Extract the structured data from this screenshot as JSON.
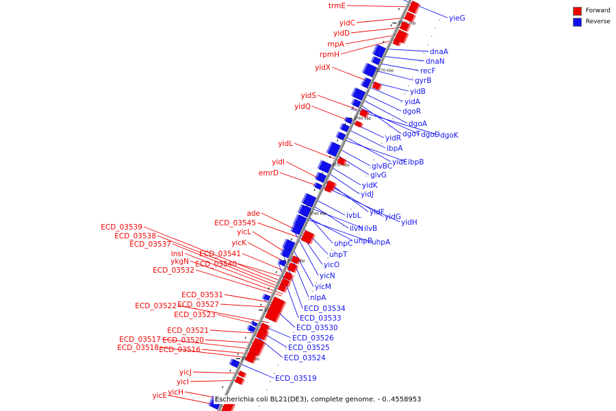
{
  "caption": "Escherichia coli BL21(DE3), complete genome. - 0..4558953",
  "legend": [
    {
      "label": "Forward",
      "color": "#ee0000"
    },
    {
      "label": "Reverse",
      "color": "#1010ee"
    }
  ],
  "colors": {
    "forward": "#ee0000",
    "reverse": "#1010ee",
    "backbone": "#888888"
  },
  "ticks": [
    "3710 kbp",
    "3720 kbp",
    "3730 kbp",
    "3740 kbp",
    "3750 kbp",
    "3760 kbp",
    "3770 kbp",
    "3780 kbp"
  ],
  "forward_genes": [
    "trmE",
    "yidC",
    "yidD",
    "rnpA",
    "rpmH",
    "yidX",
    "yidS",
    "yidQ",
    "yidL",
    "yidI",
    "emrD",
    "ade",
    "ECD_03545",
    "yicL",
    "yicK",
    "ECD_03541",
    "ECD_03540",
    "ECD_03539",
    "ECD_03538",
    "ECD_03537",
    "insI",
    "ykgN",
    "ECD_03532",
    "ECD_03531",
    "ECD_03527",
    "ECD_03522",
    "ECD_03523",
    "ECD_03521",
    "ECD_03520",
    "ECD_03517",
    "ECD_03516",
    "ECD_03518",
    "yicJ",
    "yicI",
    "yicH",
    "yicE"
  ],
  "reverse_genes": [
    "yieG",
    "dnaA",
    "dnaN",
    "recF",
    "gyrB",
    "yidB",
    "yidA",
    "dgoR",
    "dgoA",
    "dgoT",
    "dgoD",
    "dgoK",
    "yidR",
    "ibpA",
    "yidE",
    "ibpB",
    "glvBC",
    "glvG",
    "yidK",
    "yidJ",
    "yidF",
    "yidG",
    "yidH",
    "ivbL",
    "ilvN",
    "ilvB",
    "uhpC",
    "uhpB",
    "uhpA",
    "uhpT",
    "yicO",
    "yicN",
    "yicM",
    "nlpA",
    "ECD_03534",
    "ECD_03533",
    "ECD_03530",
    "ECD_03526",
    "ECD_03525",
    "ECD_03524",
    "ECD_03519"
  ]
}
